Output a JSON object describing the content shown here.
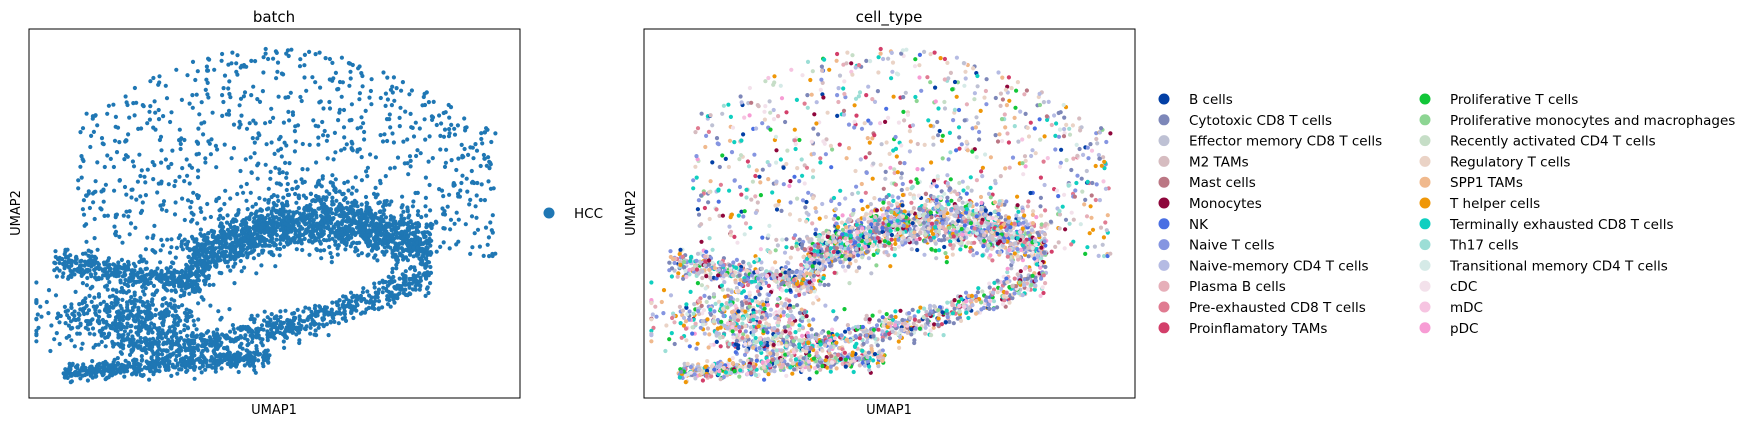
{
  "chart_data": [
    {
      "type": "scatter",
      "title": "batch",
      "xlabel": "UMAP1",
      "ylabel": "UMAP2",
      "grid": false,
      "legend_position": "right",
      "xlim": [
        0,
        10
      ],
      "ylim": [
        0,
        10
      ],
      "legend": [
        {
          "name": "HCC",
          "color": "#1f77b4"
        }
      ],
      "point_size": "small",
      "series": [
        {
          "name": "HCC",
          "color": "#1f77b4"
        }
      ]
    },
    {
      "type": "scatter",
      "title": "cell_type",
      "xlabel": "UMAP1",
      "ylabel": "UMAP2",
      "grid": false,
      "legend_position": "right",
      "xlim": [
        0,
        10
      ],
      "ylim": [
        0,
        10
      ],
      "legend_columns": 2,
      "legend": [
        {
          "name": "B cells",
          "color": "#023fa5"
        },
        {
          "name": "Cytotoxic CD8 T cells",
          "color": "#7d87b9"
        },
        {
          "name": "Effector memory CD8 T cells",
          "color": "#bec1d4"
        },
        {
          "name": "M2 TAMs",
          "color": "#d6bcc0"
        },
        {
          "name": "Mast cells",
          "color": "#bb7784"
        },
        {
          "name": "Monocytes",
          "color": "#8e063b"
        },
        {
          "name": "NK",
          "color": "#4a6fe3"
        },
        {
          "name": "Naive T cells",
          "color": "#8595e1"
        },
        {
          "name": "Naive-memory CD4 T cells",
          "color": "#b5bbe3"
        },
        {
          "name": "Plasma B cells",
          "color": "#e6afb9"
        },
        {
          "name": "Pre-exhausted CD8 T cells",
          "color": "#e07b91"
        },
        {
          "name": "Proinflamatory TAMs",
          "color": "#d33f6a"
        },
        {
          "name": "Proliferative T cells",
          "color": "#11c638"
        },
        {
          "name": "Proliferative monocytes and macrophages",
          "color": "#8dd593"
        },
        {
          "name": "Recently activated CD4 T cells",
          "color": "#c6dec7"
        },
        {
          "name": "Regulatory T cells",
          "color": "#ead3c6"
        },
        {
          "name": "SPP1 TAMs",
          "color": "#f0b98d"
        },
        {
          "name": "T helper cells",
          "color": "#ef9708"
        },
        {
          "name": "Terminally exhausted CD8 T cells",
          "color": "#0fcfc0"
        },
        {
          "name": "Th17 cells",
          "color": "#9cded6"
        },
        {
          "name": "Transitional memory CD4 T cells",
          "color": "#d5eae7"
        },
        {
          "name": "cDC",
          "color": "#f3e1eb"
        },
        {
          "name": "mDC",
          "color": "#f6c4e1"
        },
        {
          "name": "pDC",
          "color": "#f79cd4"
        }
      ]
    }
  ]
}
